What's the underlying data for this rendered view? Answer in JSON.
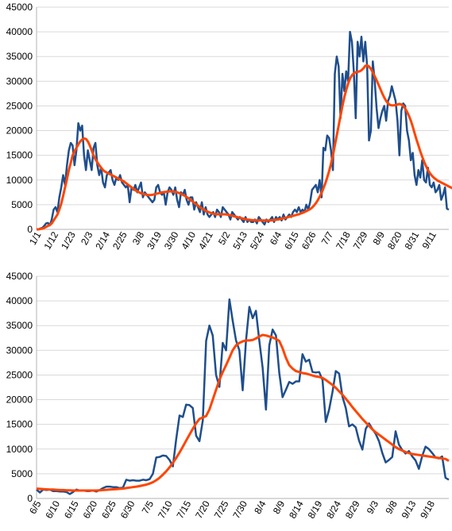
{
  "chart_data": [
    {
      "type": "line",
      "title": "",
      "xlabel": "",
      "ylabel": "",
      "ylim": [
        0,
        45000
      ],
      "yticks": [
        0,
        5000,
        10000,
        15000,
        20000,
        25000,
        30000,
        35000,
        40000,
        45000
      ],
      "grid": "horizontal",
      "legend": "none",
      "x_tick_labels": [
        "1/1",
        "1/12",
        "1/23",
        "2/3",
        "2/14",
        "2/25",
        "3/8",
        "3/19",
        "3/30",
        "4/10",
        "4/21",
        "5/2",
        "5/13",
        "5/24",
        "6/4",
        "6/15",
        "6/26",
        "7/7",
        "7/18",
        "7/29",
        "8/9",
        "8/20",
        "8/31",
        "9/11"
      ],
      "series": [
        {
          "color": "#1f4e8c",
          "values": [
            0,
            0,
            200,
            300,
            700,
            1200,
            1300,
            800,
            2000,
            4000,
            4500,
            3500,
            6500,
            8500,
            11000,
            9000,
            13000,
            16000,
            17500,
            17000,
            13000,
            16000,
            21500,
            20000,
            21000,
            15000,
            12000,
            16000,
            14000,
            12000,
            16500,
            17500,
            13000,
            11000,
            12500,
            9500,
            8500,
            11000,
            11500,
            12000,
            10000,
            9000,
            10500,
            10000,
            11000,
            9500,
            9000,
            8500,
            9000,
            5500,
            8500,
            8000,
            9000,
            7500,
            8500,
            9500,
            6500,
            7500,
            7000,
            6500,
            6000,
            5500,
            6000,
            8500,
            9000,
            7500,
            7000,
            7500,
            5000,
            7500,
            8500,
            8000,
            7000,
            8500,
            6000,
            4500,
            7500,
            7000,
            8000,
            6000,
            5000,
            6500,
            6500,
            4000,
            5500,
            4500,
            3500,
            5500,
            3000,
            4500,
            3000,
            2500,
            3000,
            3500,
            2500,
            4000,
            3500,
            2500,
            4500,
            4000,
            3500,
            3000,
            2000,
            3500,
            3000,
            2500,
            2000,
            2500,
            2000,
            1500,
            2500,
            1500,
            2000,
            1500,
            1500,
            2000,
            1200,
            2500,
            2000,
            1500,
            1000,
            2000,
            1500,
            2000,
            2500,
            1500,
            2500,
            2000,
            2500,
            1800,
            3000,
            2000,
            2500,
            3000,
            2500,
            3500,
            4000,
            3500,
            4500,
            3500,
            4000,
            3500,
            5000,
            4000,
            5500,
            8000,
            8500,
            9000,
            7500,
            10000,
            6500,
            16500,
            16000,
            19000,
            18500,
            16000,
            12000,
            31500,
            35000,
            33000,
            22500,
            31500,
            28000,
            32000,
            30000,
            40000,
            38000,
            32000,
            22500,
            38000,
            35000,
            39000,
            34000,
            38000,
            33000,
            18000,
            20000,
            34000,
            30000,
            24500,
            20500,
            22500,
            24000,
            25000,
            22000,
            26000,
            27000,
            29000,
            27500,
            26000,
            22000,
            15000,
            24000,
            25500,
            25000,
            20000,
            18000,
            14000,
            15500,
            11000,
            9000,
            12000,
            10500,
            14000,
            10000,
            9500,
            12500,
            9000,
            8500,
            9500,
            7500,
            8000,
            9000,
            6000,
            7000,
            8500,
            4200,
            4000
          ]
        },
        {
          "color": "#ff4500",
          "values": [
            0,
            0,
            100,
            150,
            300,
            500,
            700,
            900,
            1200,
            1800,
            2400,
            3000,
            4000,
            5200,
            6800,
            8500,
            10200,
            12000,
            13500,
            15000,
            15800,
            16500,
            17200,
            17800,
            18200,
            18400,
            18300,
            17800,
            17000,
            16000,
            15000,
            14200,
            13600,
            13000,
            12500,
            12000,
            11700,
            11500,
            11300,
            11100,
            10900,
            10700,
            10500,
            10300,
            10100,
            9900,
            9700,
            9400,
            9100,
            8800,
            8500,
            8200,
            7900,
            7700,
            7500,
            7300,
            7200,
            7100,
            7000,
            6950,
            6950,
            7000,
            7100,
            7200,
            7300,
            7400,
            7500,
            7550,
            7600,
            7650,
            7700,
            7700,
            7650,
            7600,
            7500,
            7350,
            7200,
            7000,
            6800,
            6550,
            6300,
            6000,
            5700,
            5400,
            5100,
            4800,
            4500,
            4250,
            4000,
            3800,
            3600,
            3450,
            3300,
            3200,
            3100,
            3050,
            3050,
            3050,
            3050,
            3050,
            3000,
            2950,
            2850,
            2750,
            2650,
            2550,
            2450,
            2350,
            2250,
            2150,
            2050,
            2000,
            1950,
            1900,
            1850,
            1850,
            1800,
            1800,
            1800,
            1800,
            1800,
            1800,
            1800,
            1800,
            1850,
            1900,
            1950,
            2000,
            2050,
            2150,
            2250,
            2350,
            2450,
            2550,
            2650,
            2750,
            2850,
            2950,
            3050,
            3200,
            3350,
            3500,
            3700,
            3900,
            4100,
            4400,
            4800,
            5300,
            5900,
            6600,
            7400,
            8300,
            9300,
            10500,
            11800,
            13300,
            15000,
            17000,
            19000,
            21000,
            23000,
            25000,
            26800,
            28200,
            29500,
            30500,
            31200,
            31600,
            31800,
            31900,
            32000,
            32200,
            32600,
            33100,
            33200,
            33000,
            32500,
            31800,
            31000,
            30200,
            29300,
            28400,
            27500,
            26700,
            26000,
            25500,
            25200,
            25100,
            25100,
            25200,
            25300,
            25400,
            25300,
            25000,
            24500,
            23800,
            23000,
            22000,
            20800,
            19500,
            18200,
            17000,
            15800,
            14700,
            13700,
            12800,
            12000,
            11400,
            10900,
            10500,
            10200,
            9900,
            9700,
            9500,
            9300,
            9100,
            8900,
            8700,
            8500,
            8300,
            8100,
            7900,
            7800,
            7700,
            7600,
            7500
          ]
        }
      ]
    },
    {
      "type": "line",
      "title": "",
      "xlabel": "",
      "ylabel": "",
      "ylim": [
        0,
        45000
      ],
      "yticks": [
        0,
        5000,
        10000,
        15000,
        20000,
        25000,
        30000,
        35000,
        40000,
        45000
      ],
      "grid": "horizontal",
      "legend": "none",
      "x_tick_labels": [
        "6/5",
        "6/10",
        "6/15",
        "6/20",
        "6/25",
        "6/30",
        "7/5",
        "7/10",
        "7/15",
        "7/20",
        "7/25",
        "7/30",
        "8/4",
        "8/9",
        "8/14",
        "8/19",
        "8/24",
        "8/29",
        "9/3",
        "9/8",
        "9/13",
        "9/18"
      ],
      "series": [
        {
          "color": "#1f4e8c",
          "values": [
            1800,
            1200,
            1800,
            1700,
            1800,
            1500,
            1500,
            1400,
            1400,
            1300,
            900,
            1300,
            1800,
            1600,
            1600,
            1500,
            1500,
            1600,
            1400,
            1700,
            2100,
            2400,
            2400,
            2300,
            2300,
            2100,
            2200,
            3800,
            3600,
            3700,
            3600,
            3600,
            3800,
            3700,
            3900,
            5000,
            8300,
            8400,
            8700,
            8600,
            7800,
            6500,
            12000,
            16800,
            16500,
            19000,
            18900,
            18300,
            12700,
            11600,
            15800,
            31900,
            35000,
            33000,
            25000,
            22600,
            31500,
            30000,
            40300,
            36000,
            32000,
            30000,
            21900,
            32000,
            38800,
            36500,
            38000,
            32000,
            26500,
            18000,
            31000,
            34200,
            33000,
            25500,
            20500,
            22000,
            23600,
            23200,
            23700,
            23700,
            29200,
            27700,
            28100,
            25600,
            25500,
            25600,
            24000,
            15500,
            18000,
            21500,
            25800,
            25300,
            20600,
            18300,
            14600,
            15000,
            14400,
            11700,
            9900,
            14100,
            15200,
            14100,
            13100,
            11600,
            9200,
            7300,
            7800,
            8400,
            13600,
            10900,
            9800,
            9100,
            9600,
            8500,
            7700,
            6000,
            8600,
            10500,
            10000,
            9200,
            8300,
            8100,
            8500,
            4200,
            3800
          ]
        },
        {
          "color": "#ff4500",
          "values": [
            2000,
            1950,
            1900,
            1850,
            1800,
            1800,
            1750,
            1700,
            1700,
            1650,
            1650,
            1600,
            1600,
            1600,
            1600,
            1600,
            1600,
            1600,
            1600,
            1650,
            1700,
            1750,
            1800,
            1850,
            1900,
            1950,
            2000,
            2100,
            2200,
            2300,
            2400,
            2500,
            2650,
            2800,
            3000,
            3300,
            3700,
            4200,
            4800,
            5500,
            6300,
            7200,
            8200,
            9300,
            10500,
            11700,
            12900,
            14100,
            15200,
            16100,
            16400,
            16700,
            18000,
            20000,
            22000,
            24000,
            25600,
            27000,
            28500,
            30000,
            31000,
            31500,
            31800,
            32000,
            32000,
            32100,
            32400,
            32800,
            33100,
            33000,
            32800,
            32600,
            32300,
            31900,
            30400,
            28500,
            27000,
            26300,
            25800,
            25600,
            25400,
            25300,
            25100,
            24900,
            24700,
            24600,
            24400,
            24000,
            23500,
            23000,
            22400,
            21700,
            21000,
            20200,
            19400,
            18500,
            17700,
            16900,
            16100,
            15400,
            14700,
            14000,
            13400,
            12900,
            12400,
            11900,
            11400,
            10900,
            10400,
            10000,
            9700,
            9400,
            9200,
            9000,
            8900,
            8800,
            8700,
            8600,
            8500,
            8400,
            8300,
            8200,
            8100,
            8000,
            7600
          ]
        }
      ]
    }
  ]
}
